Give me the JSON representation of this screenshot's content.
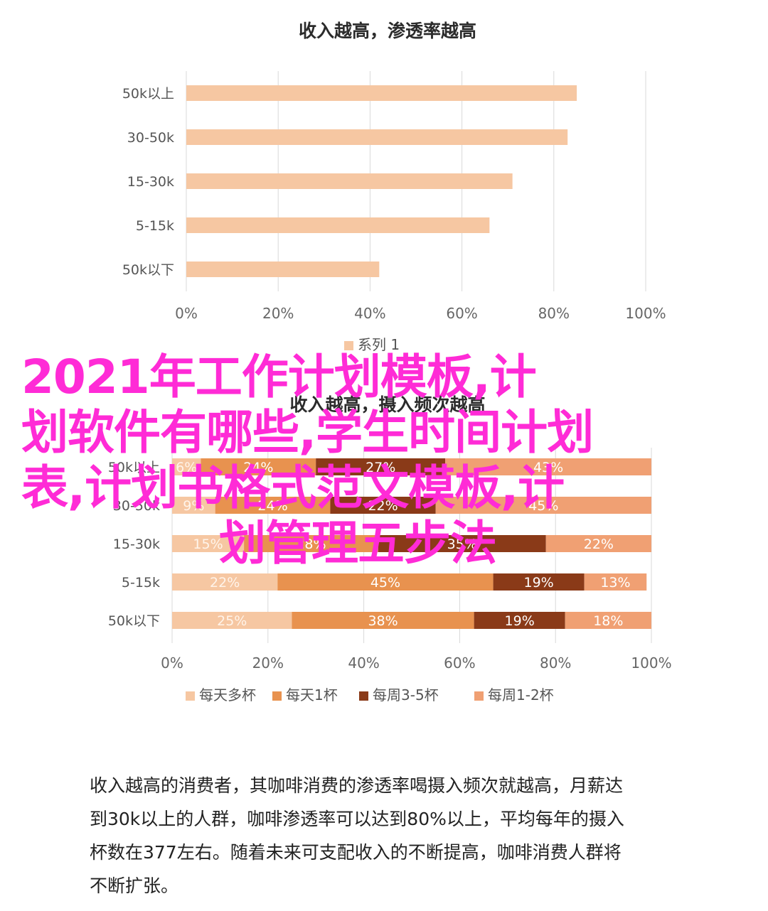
{
  "chart_data": [
    {
      "type": "bar",
      "orientation": "horizontal",
      "title": "收入越高，渗透率越高",
      "categories": [
        "50k以上",
        "30-50k",
        "15-30k",
        "5-15k",
        "50k以下"
      ],
      "series": [
        {
          "name": "系列 1",
          "values": [
            0.85,
            0.83,
            0.71,
            0.66,
            0.42
          ]
        }
      ],
      "x_ticks": [
        "0%",
        "20%",
        "40%",
        "60%",
        "80%",
        "100%"
      ],
      "xlim": [
        0,
        1
      ],
      "grid": true,
      "legend": "bottom",
      "colors": [
        "#f6c7a2"
      ]
    },
    {
      "type": "bar",
      "orientation": "horizontal",
      "stacked": true,
      "title": "收入越高，摄入频次越高",
      "categories": [
        "50k以上",
        "30-50k",
        "15-30k",
        "5-15k",
        "50k以下"
      ],
      "series": [
        {
          "name": "每天多杯",
          "values": [
            0.06,
            0.09,
            0.15,
            0.22,
            0.25
          ],
          "labels": [
            "6%",
            "9%",
            "15%",
            "22%",
            "25%"
          ]
        },
        {
          "name": "每天1杯",
          "values": [
            0.24,
            0.24,
            0.28,
            0.45,
            0.38
          ],
          "labels": [
            "24%",
            "24%",
            "28%",
            "45%",
            "38%"
          ]
        },
        {
          "name": "每周3-5杯",
          "values": [
            0.27,
            0.22,
            0.35,
            0.19,
            0.19
          ],
          "labels": [
            "27%",
            "22%",
            "35%",
            "19%",
            "19%"
          ]
        },
        {
          "name": "每周1-2杯",
          "values": [
            0.43,
            0.45,
            0.22,
            0.13,
            0.18
          ],
          "labels": [
            "43%",
            "45%",
            "22%",
            "13%",
            "18%"
          ]
        }
      ],
      "x_ticks": [
        "0%",
        "20%",
        "40%",
        "60%",
        "80%",
        "100%"
      ],
      "xlim": [
        0,
        1
      ],
      "grid": true,
      "legend": "bottom",
      "colors": [
        "#f6c7a2",
        "#e8924f",
        "#8a3a18",
        "#f0a073"
      ]
    }
  ],
  "overlay": {
    "title_lines": [
      "2021年工作计划模板,计",
      "划软件有哪些,学生时间计划",
      "表,计划书格式范文模板,计",
      "划管理五步法"
    ],
    "color": "#ff2bd6"
  },
  "caption": {
    "lines": [
      "收入越高的消费者，其咖啡消费的渗透率喝摄入频次就越高，月薪达",
      "到30k以上的人群，咖啡渗透率可以达到80%以上，平均每年的摄入",
      "杯数在377左右。随着未来可支配收入的不断提高，咖啡消费人群将",
      "不断扩张。"
    ]
  }
}
